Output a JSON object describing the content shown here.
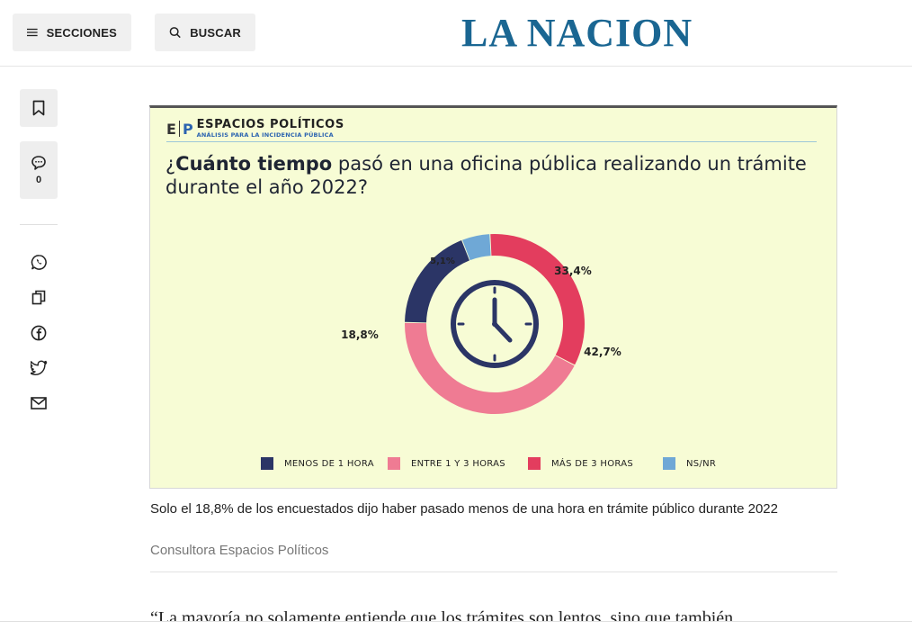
{
  "header": {
    "sections_label": "SECCIONES",
    "search_label": "BUSCAR",
    "logo": "LA NACION"
  },
  "sidebar": {
    "comment_count": "0",
    "share_icons": [
      "whatsapp-icon",
      "copy-link-icon",
      "facebook-icon",
      "twitter-icon",
      "email-icon"
    ]
  },
  "infographic": {
    "brand_abbrev_e": "E",
    "brand_abbrev_p": "P",
    "brand_name": "ESPACIOS POLÍTICOS",
    "brand_tagline": "ANÁLISIS PARA LA INCIDENCIA PÚBLICA",
    "question_open": "¿",
    "question_bold": "Cuánto tiempo",
    "question_rest": " pasó en una oficina pública realizando un trámite durante el año 2022?",
    "center_icon": "clock-icon"
  },
  "chart_data": {
    "type": "pie",
    "variant": "donut",
    "title": "¿Cuánto tiempo pasó en una oficina pública realizando un trámite durante el año 2022?",
    "series": [
      {
        "name": "MENOS DE 1 HORA",
        "value": 18.8,
        "label": "18,8%",
        "color": "#2b3566"
      },
      {
        "name": "ENTRE 1 Y 3 HORAS",
        "value": 42.7,
        "label": "42,7%",
        "color": "#ef7b93"
      },
      {
        "name": "MÁS DE 3 HORAS",
        "value": 33.4,
        "label": "33,4%",
        "color": "#e33d5e"
      },
      {
        "name": "NS/NR",
        "value": 5.1,
        "label": "5,1%",
        "color": "#6fa8d6"
      }
    ],
    "legend_position": "bottom"
  },
  "caption": {
    "text": "Solo el 18,8% de los encuestados dijo haber pasado menos de una hora en trámite público durante 2022",
    "credit": "Consultora Espacios Políticos"
  },
  "article": {
    "quote_start": "“La mayoría no solamente entiende que los trámites son lentos, sino que también"
  }
}
